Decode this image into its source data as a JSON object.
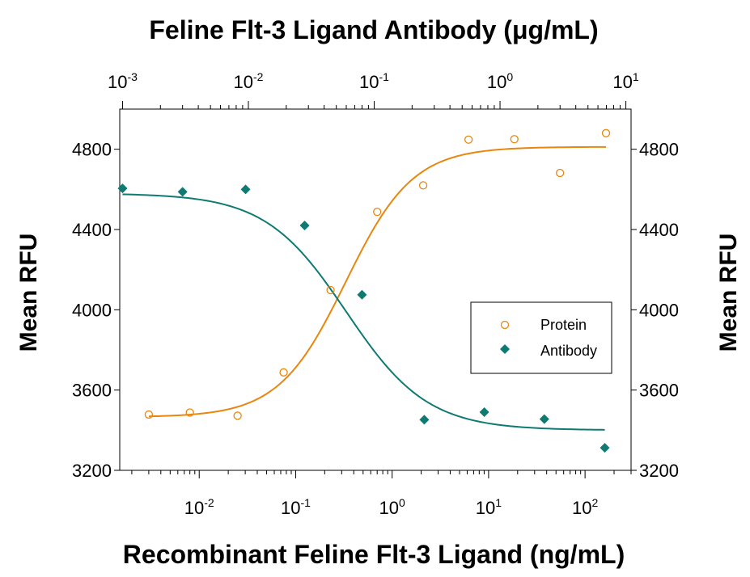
{
  "chart_data": {
    "type": "scatter",
    "top_title": "Feline Flt-3 Ligand Antibody (μg/mL)",
    "xlabel": "Recombinant Feline Flt-3 Ligand (ng/mL)",
    "ylabel_left": "Mean RFU",
    "ylabel_right": "Mean RFU",
    "x_scale": "log",
    "x_range": [
      0.0015,
      300
    ],
    "top_x_scale": "log",
    "top_x_range": [
      0.00095,
      11
    ],
    "ylim": [
      3200,
      5000
    ],
    "yticks": [
      3200,
      3600,
      4000,
      4400,
      4800
    ],
    "ytick_labels": [
      "3200",
      "3600",
      "4000",
      "4400",
      "4800"
    ],
    "bottom_ticks": [
      {
        "value": 0.01,
        "base": "10",
        "exp": "-2"
      },
      {
        "value": 0.1,
        "base": "10",
        "exp": "-1"
      },
      {
        "value": 1,
        "base": "10",
        "exp": "0"
      },
      {
        "value": 10,
        "base": "10",
        "exp": "1"
      },
      {
        "value": 100,
        "base": "10",
        "exp": "2"
      }
    ],
    "top_ticks": [
      {
        "value": 0.001,
        "base": "10",
        "exp": "-3"
      },
      {
        "value": 0.01,
        "base": "10",
        "exp": "-2"
      },
      {
        "value": 0.1,
        "base": "10",
        "exp": "-1"
      },
      {
        "value": 1,
        "base": "10",
        "exp": "0"
      },
      {
        "value": 10,
        "base": "10",
        "exp": "1"
      }
    ],
    "legend": {
      "position": "right-middle"
    },
    "series": [
      {
        "name": "Protein",
        "axis": "bottom",
        "marker": "open-circle",
        "color": "#E8870E",
        "points": [
          {
            "x": 0.003,
            "y": 3478
          },
          {
            "x": 0.008,
            "y": 3488
          },
          {
            "x": 0.025,
            "y": 3472
          },
          {
            "x": 0.075,
            "y": 3688
          },
          {
            "x": 0.23,
            "y": 4098
          },
          {
            "x": 0.7,
            "y": 4488
          },
          {
            "x": 2.1,
            "y": 4620
          },
          {
            "x": 6.2,
            "y": 4848
          },
          {
            "x": 18.5,
            "y": 4850
          },
          {
            "x": 55,
            "y": 4682
          },
          {
            "x": 165,
            "y": 4880
          }
        ],
        "fit": {
          "bottom": 3465,
          "top": 4812,
          "ec50": 0.33,
          "hill": 1.25
        }
      },
      {
        "name": "Antibody",
        "axis": "top",
        "marker": "filled-diamond",
        "color": "#0E7A72",
        "points": [
          {
            "x": 0.001,
            "y": 4605
          },
          {
            "x": 0.003,
            "y": 4588
          },
          {
            "x": 0.0095,
            "y": 4600
          },
          {
            "x": 0.028,
            "y": 4420
          },
          {
            "x": 0.08,
            "y": 4075
          },
          {
            "x": 0.25,
            "y": 3452
          },
          {
            "x": 0.75,
            "y": 3490
          },
          {
            "x": 2.25,
            "y": 3455
          },
          {
            "x": 6.8,
            "y": 3312
          }
        ],
        "fit": {
          "bottom": 3400,
          "top": 4580,
          "ec50": 0.06,
          "hill": 1.35
        }
      }
    ]
  }
}
